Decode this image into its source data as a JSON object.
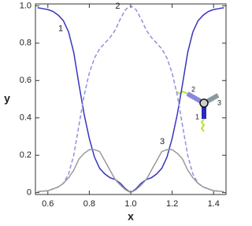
{
  "chart_data": {
    "type": "line",
    "x_label": "x",
    "y_label": "y",
    "x": [
      0.55,
      0.575,
      0.6,
      0.625,
      0.65,
      0.675,
      0.7,
      0.725,
      0.75,
      0.775,
      0.8,
      0.825,
      0.85,
      0.875,
      0.9,
      0.925,
      0.95,
      0.975,
      1,
      1.025,
      1.05,
      1.075,
      1.1,
      1.125,
      1.15,
      1.175,
      1.2,
      1.225,
      1.25,
      1.275,
      1.3,
      1.325,
      1.35,
      1.375,
      1.4,
      1.425,
      1.45
    ],
    "series": [
      {
        "name": "1",
        "color": "#3535c0",
        "line_style": "solid",
        "values": [
          0.99,
          0.985,
          0.98,
          0.97,
          0.95,
          0.92,
          0.86,
          0.75,
          0.58,
          0.42,
          0.29,
          0.19,
          0.13,
          0.1,
          0.08,
          0.07,
          0.05,
          0.02,
          0,
          0.02,
          0.05,
          0.07,
          0.08,
          0.1,
          0.13,
          0.19,
          0.29,
          0.42,
          0.58,
          0.75,
          0.86,
          0.92,
          0.95,
          0.97,
          0.98,
          0.985,
          0.99
        ]
      },
      {
        "name": "2",
        "color": "#9090dd",
        "line_style": "dashed",
        "values": [
          0.005,
          0.008,
          0.01,
          0.02,
          0.03,
          0.05,
          0.1,
          0.2,
          0.36,
          0.52,
          0.64,
          0.72,
          0.77,
          0.8,
          0.83,
          0.87,
          0.93,
          0.98,
          1,
          0.98,
          0.93,
          0.87,
          0.83,
          0.8,
          0.77,
          0.72,
          0.64,
          0.52,
          0.36,
          0.2,
          0.1,
          0.05,
          0.03,
          0.02,
          0.01,
          0.008,
          0.005
        ]
      },
      {
        "name": "3",
        "color": "#999999",
        "line_style": "solid",
        "values": [
          0.005,
          0.008,
          0.01,
          0.02,
          0.03,
          0.05,
          0.08,
          0.12,
          0.18,
          0.21,
          0.23,
          0.23,
          0.22,
          0.17,
          0.12,
          0.07,
          0.04,
          0.015,
          0,
          0.015,
          0.04,
          0.07,
          0.12,
          0.17,
          0.22,
          0.23,
          0.23,
          0.21,
          0.18,
          0.12,
          0.08,
          0.05,
          0.03,
          0.02,
          0.01,
          0.008,
          0.005
        ]
      }
    ],
    "xlim": [
      0.54,
      1.46
    ],
    "ylim": [
      -0.01,
      1.01
    ],
    "xticks": [
      0.6,
      0.8,
      {
        "value": 1,
        "label": "1.0"
      },
      1.2,
      1.4
    ],
    "yticks": [
      0,
      0.2,
      0.4,
      0.6,
      0.8,
      {
        "value": 1,
        "label": "1.0"
      }
    ],
    "grid": false
  }
}
